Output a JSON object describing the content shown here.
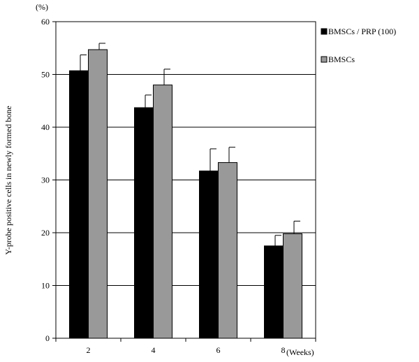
{
  "chart_data": {
    "type": "bar",
    "categories": [
      "2",
      "4",
      "6",
      "8"
    ],
    "x_unit": "(Weeks)",
    "y_unit": "(%)",
    "ylabel": "Y-probe positive cells in newly formed bone",
    "ylim": [
      0,
      60
    ],
    "yticks": [
      0,
      10,
      20,
      30,
      40,
      50,
      60
    ],
    "grid": true,
    "legend_position": "right",
    "series": [
      {
        "name": "BMSCs / PRP (100)",
        "color": "#000000",
        "values": [
          50.7,
          43.7,
          31.7,
          17.5
        ],
        "errors": [
          3.0,
          2.4,
          4.2,
          2.0
        ]
      },
      {
        "name": "BMSCs",
        "color": "#999999",
        "values": [
          54.7,
          48.0,
          33.3,
          19.8
        ],
        "errors": [
          1.2,
          3.0,
          2.9,
          2.4
        ]
      }
    ]
  }
}
